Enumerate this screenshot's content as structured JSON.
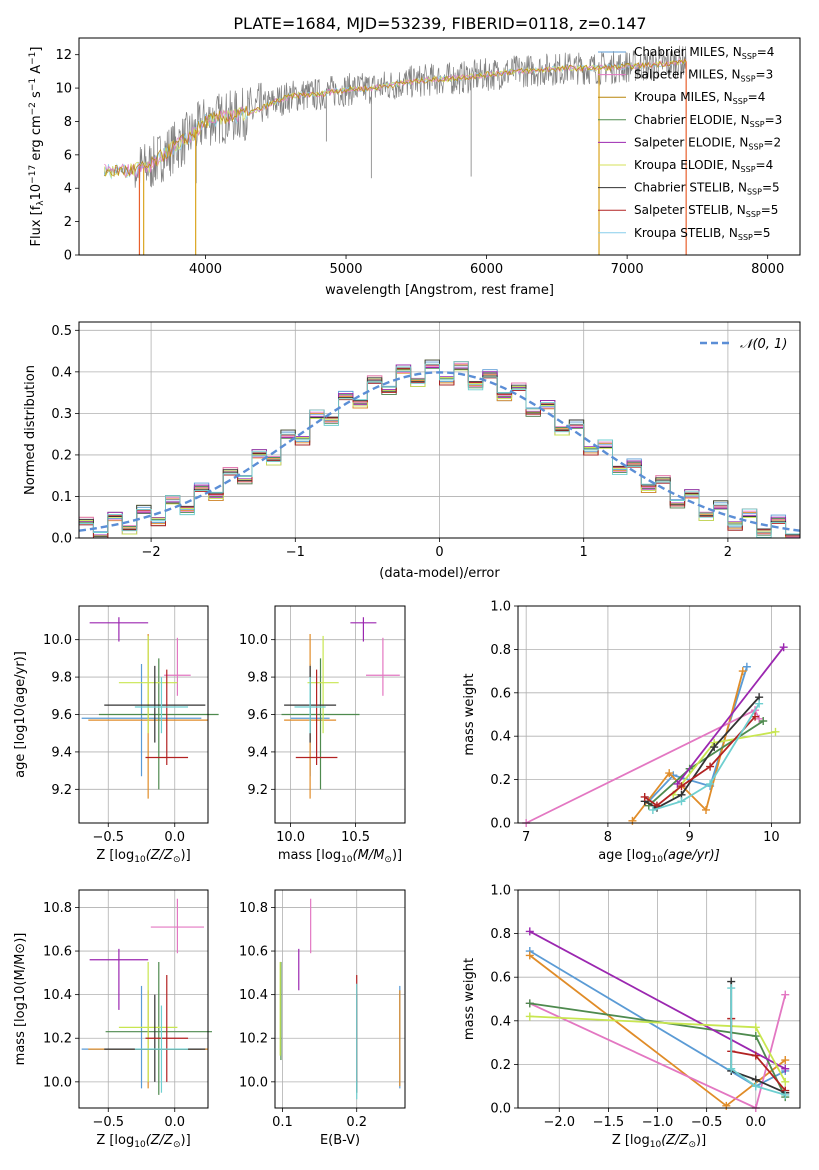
{
  "figure": {
    "title": "PLATE=1684, MJD=53239, FIBERID=0118, z=0.147"
  },
  "colors": {
    "data": "#808080",
    "series": [
      "#5B9BD5",
      "#E377C2",
      "#B8860B",
      "#4E8A4E",
      "#9B27B0",
      "#D6E05A",
      "#333333",
      "#B22222",
      "#87CEEB"
    ],
    "fit_lines": [
      "#5B9BD5",
      "#E08C28",
      "#E377C2",
      "#4E8A4E",
      "#9B27B0",
      "#C8E650",
      "#333333",
      "#B22222",
      "#6ECFD0"
    ],
    "normal": "#5B8ED6",
    "grid": "#b0b0b0"
  },
  "chart_data": [
    {
      "id": "spectrum",
      "type": "line",
      "xlabel": "wavelength [Angstrom, rest frame]",
      "ylabel": "Flux [f$_\\lambda$10$^{-17}$ erg cm$^{-2}$ s$^{-1}$ A$^{-1}$]",
      "xlim": [
        3100,
        8230
      ],
      "ylim": [
        0,
        13
      ],
      "xticks": [
        "4000",
        "5000",
        "6000",
        "7000",
        "8000"
      ],
      "yticks": [
        "0",
        "2",
        "4",
        "6",
        "8",
        "10",
        "12"
      ],
      "grid": false,
      "legend_position": "top-right",
      "legend": [
        {
          "label": "Chabrier MILES, N",
          "sub": "SSP",
          "suffix": "=4"
        },
        {
          "label": "Salpeter MILES, N",
          "sub": "SSP",
          "suffix": "=3"
        },
        {
          "label": "Kroupa MILES, N",
          "sub": "SSP",
          "suffix": "=4"
        },
        {
          "label": "Chabrier ELODIE, N",
          "sub": "SSP",
          "suffix": "=3"
        },
        {
          "label": "Salpeter ELODIE, N",
          "sub": "SSP",
          "suffix": "=2"
        },
        {
          "label": "Kroupa ELODIE, N",
          "sub": "SSP",
          "suffix": "=4"
        },
        {
          "label": "Chabrier STELIB, N",
          "sub": "SSP",
          "suffix": "=5"
        },
        {
          "label": "Salpeter STELIB, N",
          "sub": "SSP",
          "suffix": "=5"
        },
        {
          "label": "Kroupa STELIB, N",
          "sub": "SSP",
          "suffix": "=5"
        }
      ],
      "continuum": {
        "x": [
          3300,
          3500,
          3600,
          3700,
          3800,
          3900,
          4000,
          4100,
          4200,
          4300,
          4400,
          4500,
          4600,
          4700,
          4800,
          4900,
          5000,
          5200,
          5400,
          5600,
          5800,
          6000,
          6200,
          6400,
          6600,
          6800,
          7000,
          7200,
          7400
        ],
        "y": [
          5.0,
          5.1,
          5.3,
          6.0,
          6.6,
          7.2,
          8.0,
          8.2,
          8.3,
          8.5,
          8.8,
          9.2,
          9.5,
          9.6,
          9.6,
          9.8,
          9.9,
          10.0,
          10.3,
          10.5,
          10.6,
          10.8,
          11.0,
          11.1,
          11.2,
          11.2,
          11.3,
          11.4,
          11.6
        ]
      },
      "data_extent": [
        3280,
        7420
      ],
      "model_drops": [
        {
          "x": 3530,
          "series": 8
        },
        {
          "x": 3560,
          "series": 2
        },
        {
          "x": 3930,
          "series": 2
        },
        {
          "x": 6800,
          "series": 2
        },
        {
          "x": 7420,
          "series": 8
        }
      ],
      "absorption": [
        {
          "x": 3934,
          "y": 4.3
        },
        {
          "x": 5180,
          "y": 4.6
        },
        {
          "x": 5890,
          "y": 4.7
        },
        {
          "x": 4860,
          "y": 6.8
        }
      ]
    },
    {
      "id": "residuals",
      "type": "histogram",
      "xlabel": "(data-model)/error",
      "ylabel": "Normed distribution",
      "xlim": [
        -2.5,
        2.5
      ],
      "ylim": [
        0,
        0.52
      ],
      "xticks": [
        "−2",
        "−1",
        "0",
        "1",
        "2"
      ],
      "xtick_values": [
        -2,
        -1,
        0,
        1,
        2
      ],
      "yticks": [
        "0.0",
        "0.1",
        "0.2",
        "0.3",
        "0.4",
        "0.5"
      ],
      "ytick_values": [
        0,
        0.1,
        0.2,
        0.3,
        0.4,
        0.5
      ],
      "grid": true,
      "legend_position": "top-right",
      "legend": [
        "𝒩(0, 1)"
      ],
      "bin_width": 0.1,
      "bin_start": -2.5,
      "jitter": [
        0.012,
        -0.018,
        0.025,
        -0.01,
        0.03,
        -0.022,
        0.015,
        -0.03,
        0.02,
        -0.012
      ]
    },
    {
      "id": "age-vs-Z",
      "type": "errorbar",
      "xlabel": "Z [log",
      "xlabel_sub": "10",
      "xlabel_rest": "(Z/Z",
      "xlabel_sun": "⊙",
      "xlabel_end": ")]",
      "ylabel": "age  [log10(age/yr)]",
      "xlim": [
        -0.72,
        0.25
      ],
      "ylim": [
        9.02,
        10.18
      ],
      "xticks": [
        "−0.5",
        "0.0"
      ],
      "xtick_values": [
        -0.5,
        0
      ],
      "yticks": [
        "9.2",
        "9.4",
        "9.6",
        "9.8",
        "10.0"
      ],
      "ytick_values": [
        9.2,
        9.4,
        9.6,
        9.8,
        10.0
      ],
      "points": [
        {
          "x": -0.25,
          "y": 9.58,
          "xerr": 0.45,
          "ylo": 9.27,
          "yhi": 9.87,
          "c": 0
        },
        {
          "x": -0.2,
          "y": 9.57,
          "xerr": 0.45,
          "ylo": 9.15,
          "yhi": 10.03,
          "c": 1
        },
        {
          "x": 0.02,
          "y": 9.81,
          "xerr": 0.1,
          "ylo": 9.7,
          "yhi": 10.01,
          "c": 2
        },
        {
          "x": -0.12,
          "y": 9.6,
          "xerr": 0.45,
          "ylo": 9.2,
          "yhi": 9.9,
          "c": 3
        },
        {
          "x": -0.42,
          "y": 10.09,
          "xerr": 0.22,
          "ylo": 9.99,
          "yhi": 10.12,
          "c": 4
        },
        {
          "x": -0.2,
          "y": 9.77,
          "xerr": 0.22,
          "ylo": 9.5,
          "yhi": 10.02,
          "c": 5
        },
        {
          "x": -0.15,
          "y": 9.65,
          "xerr": 0.38,
          "ylo": 9.45,
          "yhi": 9.86,
          "c": 6
        },
        {
          "x": -0.06,
          "y": 9.37,
          "xerr": 0.16,
          "ylo": 9.33,
          "yhi": 9.84,
          "c": 7
        },
        {
          "x": -0.1,
          "y": 9.64,
          "xerr": 0.2,
          "ylo": 9.5,
          "yhi": 9.8,
          "c": 8
        }
      ]
    },
    {
      "id": "age-vs-mass",
      "type": "errorbar",
      "xlabel": "mass [log",
      "xlabel_sub": "10",
      "xlabel_rest": "(M/M",
      "xlabel_sun": "⊙",
      "xlabel_end": ")]",
      "ylabel": "",
      "xlim": [
        9.88,
        10.88
      ],
      "ylim": [
        9.02,
        10.18
      ],
      "xticks": [
        "10.0",
        "10.5"
      ],
      "xtick_values": [
        10.0,
        10.5
      ],
      "yticks": [
        "9.2",
        "9.4",
        "9.6",
        "9.8",
        "10.0"
      ],
      "ytick_values": [
        9.2,
        9.4,
        9.6,
        9.8,
        10.0
      ],
      "points": [
        {
          "x": 10.15,
          "y": 9.58,
          "xerr": 0.15,
          "ylo": 9.27,
          "yhi": 9.87,
          "c": 0
        },
        {
          "x": 10.15,
          "y": 9.57,
          "xerr": 0.2,
          "ylo": 9.15,
          "yhi": 10.03,
          "c": 1
        },
        {
          "x": 10.71,
          "y": 9.81,
          "xerr": 0.13,
          "ylo": 9.7,
          "yhi": 10.01,
          "c": 2
        },
        {
          "x": 10.23,
          "y": 9.6,
          "xerr": 0.3,
          "ylo": 9.2,
          "yhi": 9.9,
          "c": 3
        },
        {
          "x": 10.56,
          "y": 10.09,
          "xerr": 0.1,
          "ylo": 9.99,
          "yhi": 10.12,
          "c": 4
        },
        {
          "x": 10.25,
          "y": 9.77,
          "xerr": 0.12,
          "ylo": 9.5,
          "yhi": 10.02,
          "c": 5
        },
        {
          "x": 10.15,
          "y": 9.65,
          "xerr": 0.2,
          "ylo": 9.45,
          "yhi": 9.86,
          "c": 6
        },
        {
          "x": 10.2,
          "y": 9.37,
          "xerr": 0.16,
          "ylo": 9.33,
          "yhi": 9.84,
          "c": 7
        },
        {
          "x": 10.15,
          "y": 9.64,
          "xerr": 0.12,
          "ylo": 9.5,
          "yhi": 9.8,
          "c": 8
        }
      ]
    },
    {
      "id": "massweight-vs-age",
      "type": "line",
      "xlabel": "age  [log",
      "xlabel_sub": "10",
      "xlabel_rest": "(age/yr)]",
      "ylabel": "mass weight",
      "xlim": [
        6.9,
        10.35
      ],
      "ylim": [
        0,
        1
      ],
      "xticks": [
        "7",
        "8",
        "9",
        "10"
      ],
      "xtick_values": [
        7,
        8,
        9,
        10
      ],
      "yticks": [
        "0.0",
        "0.2",
        "0.4",
        "0.6",
        "0.8",
        "1.0"
      ],
      "ytick_values": [
        0,
        0.2,
        0.4,
        0.6,
        0.8,
        1.0
      ],
      "series": [
        {
          "c": 0,
          "x": [
            8.5,
            8.8,
            9.25,
            9.7
          ],
          "y": [
            0.1,
            0.22,
            0.17,
            0.72
          ]
        },
        {
          "c": 1,
          "x": [
            8.3,
            8.75,
            9.2,
            9.65
          ],
          "y": [
            0.01,
            0.23,
            0.06,
            0.7
          ]
        },
        {
          "c": 2,
          "x": [
            7.0,
            9.8,
            9.85
          ],
          "y": [
            0.0,
            0.52,
            0.48
          ]
        },
        {
          "c": 3,
          "x": [
            8.5,
            9.0,
            9.9
          ],
          "y": [
            0.08,
            0.25,
            0.47
          ]
        },
        {
          "c": 4,
          "x": [
            8.85,
            10.15
          ],
          "y": [
            0.18,
            0.81
          ]
        },
        {
          "c": 5,
          "x": [
            8.8,
            9.3,
            10.05
          ],
          "y": [
            0.13,
            0.37,
            0.42
          ]
        },
        {
          "c": 6,
          "x": [
            8.45,
            8.6,
            8.9,
            9.3,
            9.85
          ],
          "y": [
            0.1,
            0.07,
            0.13,
            0.35,
            0.58
          ]
        },
        {
          "c": 7,
          "x": [
            8.45,
            8.6,
            8.9,
            9.25,
            9.8
          ],
          "y": [
            0.12,
            0.08,
            0.17,
            0.26,
            0.49
          ]
        },
        {
          "c": 8,
          "x": [
            8.55,
            8.9,
            9.25,
            9.85
          ],
          "y": [
            0.06,
            0.1,
            0.18,
            0.55
          ]
        }
      ]
    },
    {
      "id": "mass-vs-Z",
      "type": "errorbar",
      "xlabel": "Z [log",
      "xlabel_sub": "10",
      "xlabel_rest": "(Z/Z",
      "xlabel_sun": "⊙",
      "xlabel_end": ")]",
      "ylabel": "mass [log10(M/M⊙)]",
      "xlim": [
        -0.72,
        0.25
      ],
      "ylim": [
        9.88,
        10.88
      ],
      "xticks": [
        "−0.5",
        "0.0"
      ],
      "xtick_values": [
        -0.5,
        0
      ],
      "yticks": [
        "10.0",
        "10.2",
        "10.4",
        "10.6",
        "10.8"
      ],
      "ytick_values": [
        10.0,
        10.2,
        10.4,
        10.6,
        10.8
      ],
      "points": [
        {
          "x": -0.25,
          "y": 10.15,
          "xerr": 0.45,
          "ylo": 9.97,
          "yhi": 10.44,
          "c": 0
        },
        {
          "x": -0.2,
          "y": 10.15,
          "xerr": 0.45,
          "ylo": 9.97,
          "yhi": 10.42,
          "c": 1
        },
        {
          "x": 0.02,
          "y": 10.71,
          "xerr": 0.2,
          "ylo": 10.59,
          "yhi": 10.84,
          "c": 2
        },
        {
          "x": -0.12,
          "y": 10.23,
          "xerr": 0.4,
          "ylo": 9.94,
          "yhi": 10.55,
          "c": 3
        },
        {
          "x": -0.42,
          "y": 10.56,
          "xerr": 0.22,
          "ylo": 10.33,
          "yhi": 10.61,
          "c": 4
        },
        {
          "x": -0.2,
          "y": 10.25,
          "xerr": 0.22,
          "ylo": 10.0,
          "yhi": 10.55,
          "c": 5
        },
        {
          "x": -0.15,
          "y": 10.15,
          "xerr": 0.38,
          "ylo": 10.0,
          "yhi": 10.4,
          "c": 6
        },
        {
          "x": -0.06,
          "y": 10.2,
          "xerr": 0.16,
          "ylo": 10.0,
          "yhi": 10.49,
          "c": 7
        },
        {
          "x": -0.1,
          "y": 10.15,
          "xerr": 0.2,
          "ylo": 9.95,
          "yhi": 10.35,
          "c": 8
        }
      ]
    },
    {
      "id": "mass-vs-ebv",
      "type": "errorbar",
      "xlabel": "E(B-V)",
      "ylabel": "",
      "xlim": [
        0.09,
        0.265
      ],
      "ylim": [
        9.88,
        10.88
      ],
      "xticks": [
        "0.1",
        "0.2"
      ],
      "xtick_values": [
        0.1,
        0.2
      ],
      "yticks": [
        "10.0",
        "10.2",
        "10.4",
        "10.6",
        "10.8"
      ],
      "ytick_values": [
        10.0,
        10.2,
        10.4,
        10.6,
        10.8
      ],
      "points": [
        {
          "x": 0.258,
          "ylo": 9.97,
          "yhi": 10.44,
          "c": 0
        },
        {
          "x": 0.258,
          "ylo": 9.98,
          "yhi": 10.42,
          "c": 1
        },
        {
          "x": 0.138,
          "ylo": 10.59,
          "yhi": 10.84,
          "c": 2
        },
        {
          "x": 0.098,
          "ylo": 10.1,
          "yhi": 10.55,
          "c": 3
        },
        {
          "x": 0.122,
          "ylo": 10.42,
          "yhi": 10.61,
          "c": 4
        },
        {
          "x": 0.097,
          "ylo": 10.12,
          "yhi": 10.55,
          "c": 5
        },
        {
          "x": 0.2,
          "ylo": 9.95,
          "yhi": 10.4,
          "c": 6
        },
        {
          "x": 0.2,
          "ylo": 10.0,
          "yhi": 10.49,
          "c": 7
        },
        {
          "x": 0.2,
          "ylo": 9.92,
          "yhi": 10.45,
          "c": 8
        }
      ]
    },
    {
      "id": "massweight-vs-Z",
      "type": "line",
      "xlabel": "Z [log",
      "xlabel_sub": "10",
      "xlabel_rest": "(Z/Z",
      "xlabel_sun": "⊙",
      "xlabel_end": ")]",
      "ylabel": "mass weight",
      "xlim": [
        -2.42,
        0.45
      ],
      "ylim": [
        0,
        1
      ],
      "xticks": [
        "−2.0",
        "−1.5",
        "−1.0",
        "−0.5",
        "0.0"
      ],
      "xtick_values": [
        -2.0,
        -1.5,
        -1.0,
        -0.5,
        0.0
      ],
      "yticks": [
        "0.0",
        "0.2",
        "0.4",
        "0.6",
        "0.8",
        "1.0"
      ],
      "ytick_values": [
        0,
        0.2,
        0.4,
        0.6,
        0.8,
        1.0
      ],
      "series": [
        {
          "c": 0,
          "x": [
            -2.3,
            0.0,
            0.3
          ],
          "y": [
            0.72,
            0.1,
            0.17
          ]
        },
        {
          "c": 1,
          "x": [
            -2.3,
            -0.3,
            0.3
          ],
          "y": [
            0.7,
            0.01,
            0.22
          ]
        },
        {
          "c": 2,
          "x": [
            -2.3,
            0.0,
            0.3
          ],
          "y": [
            0.48,
            0.0,
            0.52
          ]
        },
        {
          "c": 3,
          "x": [
            -2.3,
            0.0,
            0.3
          ],
          "y": [
            0.48,
            0.33,
            0.05
          ]
        },
        {
          "c": 4,
          "x": [
            -2.3,
            0.3
          ],
          "y": [
            0.81,
            0.18
          ]
        },
        {
          "c": 5,
          "x": [
            -2.3,
            0.0,
            0.3
          ],
          "y": [
            0.42,
            0.37,
            0.12
          ]
        },
        {
          "c": 6,
          "x": [
            -0.25,
            -0.25,
            0.0,
            0.3
          ],
          "y": [
            0.58,
            0.17,
            0.13,
            0.07
          ]
        },
        {
          "c": 7,
          "x": [
            -0.25,
            -0.25,
            0.0,
            0.3
          ],
          "y": [
            0.41,
            0.26,
            0.24,
            0.08
          ]
        },
        {
          "c": 8,
          "x": [
            -0.25,
            -0.25,
            0.0,
            0.3
          ],
          "y": [
            0.55,
            0.18,
            0.1,
            0.06
          ]
        }
      ]
    }
  ]
}
